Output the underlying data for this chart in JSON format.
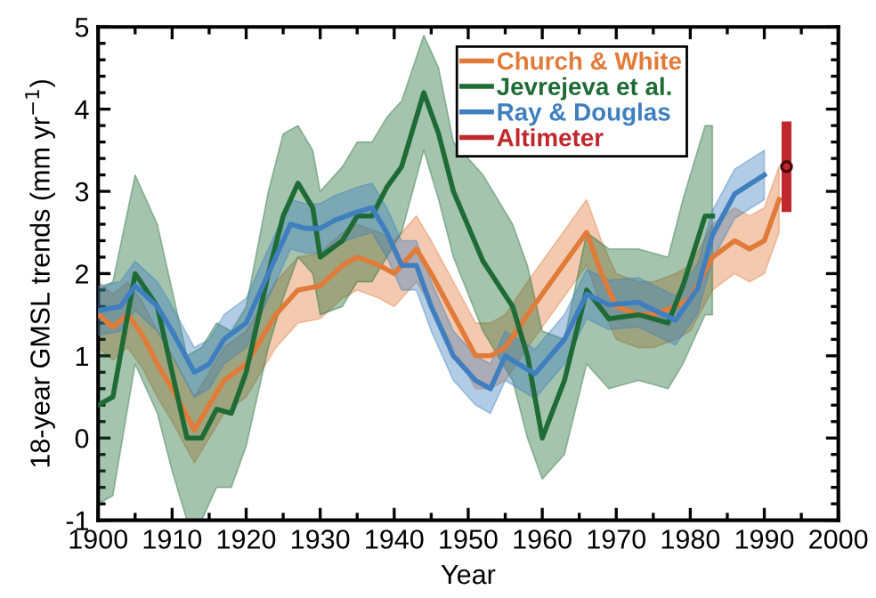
{
  "chart_data": {
    "type": "line",
    "xlabel": "Year",
    "ylabel": "18-year GMSL trends (mm yr$^{−1}$)",
    "xlim": [
      1900,
      2000
    ],
    "xticks": [
      1900,
      1910,
      1920,
      1930,
      1940,
      1950,
      1960,
      1970,
      1980,
      1990,
      2000
    ],
    "ylim": [
      -1,
      5
    ],
    "yticks": [
      -1,
      0,
      1,
      2,
      3,
      4,
      5
    ],
    "grid": false,
    "legend": "top",
    "series": [
      {
        "name": "Church & White",
        "color": "#e07b39",
        "x": [
          1900,
          1902,
          1904,
          1906,
          1908,
          1910,
          1913,
          1915,
          1917,
          1920,
          1922,
          1924,
          1927,
          1930,
          1933,
          1935,
          1938,
          1940,
          1943,
          1945,
          1948,
          1951,
          1953,
          1955,
          1958,
          1962,
          1966,
          1968,
          1970,
          1973,
          1975,
          1978,
          1980,
          1983,
          1986,
          1988,
          1990,
          1992
        ],
        "values": [
          1.5,
          1.35,
          1.5,
          1.25,
          0.9,
          0.6,
          0.1,
          0.4,
          0.7,
          0.9,
          1.2,
          1.5,
          1.8,
          1.85,
          2.1,
          2.2,
          2.1,
          2.0,
          2.3,
          2.0,
          1.5,
          1.0,
          1.0,
          1.1,
          1.5,
          2.0,
          2.5,
          2.0,
          1.6,
          1.5,
          1.5,
          1.6,
          1.7,
          2.2,
          2.4,
          2.3,
          2.4,
          2.9
        ],
        "lower": [
          1.1,
          0.95,
          1.1,
          0.85,
          0.5,
          0.2,
          -0.3,
          0.0,
          0.3,
          0.5,
          0.8,
          1.1,
          1.4,
          1.45,
          1.7,
          1.8,
          1.7,
          1.6,
          1.9,
          1.6,
          1.1,
          0.6,
          0.6,
          0.7,
          1.1,
          1.6,
          2.1,
          1.6,
          1.2,
          1.1,
          1.1,
          1.2,
          1.3,
          1.8,
          2.0,
          1.9,
          2.0,
          2.5
        ],
        "upper": [
          1.9,
          1.75,
          1.9,
          1.65,
          1.3,
          1.0,
          0.5,
          0.8,
          1.1,
          1.3,
          1.6,
          1.9,
          2.2,
          2.25,
          2.5,
          2.6,
          2.5,
          2.4,
          2.7,
          2.4,
          1.9,
          1.4,
          1.4,
          1.5,
          1.9,
          2.4,
          2.9,
          2.4,
          2.0,
          1.9,
          1.9,
          2.0,
          2.1,
          2.6,
          2.8,
          2.7,
          2.8,
          3.3
        ]
      },
      {
        "name": "Jevrejeva et al.",
        "color": "#1e6b35",
        "x": [
          1900,
          1902,
          1905,
          1908,
          1910,
          1912,
          1914,
          1916,
          1918,
          1920,
          1923,
          1925,
          1927,
          1929,
          1930,
          1933,
          1935,
          1937,
          1939,
          1941,
          1944,
          1946,
          1948,
          1952,
          1956,
          1958,
          1960,
          1963,
          1966,
          1969,
          1973,
          1977,
          1979,
          1982,
          1983
        ],
        "values": [
          0.4,
          0.5,
          2.0,
          1.6,
          0.8,
          0.0,
          0.0,
          0.35,
          0.3,
          0.8,
          2.0,
          2.7,
          3.1,
          2.8,
          2.2,
          2.4,
          2.7,
          2.7,
          3.05,
          3.3,
          4.2,
          3.7,
          3.0,
          2.15,
          1.6,
          1.0,
          0.0,
          0.7,
          1.8,
          1.45,
          1.5,
          1.4,
          1.85,
          2.7,
          2.7
        ],
        "lower": [
          -0.8,
          -0.7,
          0.9,
          0.3,
          -0.4,
          -1.0,
          -1.0,
          -0.6,
          -0.6,
          -0.1,
          1.1,
          1.7,
          2.2,
          2.0,
          1.5,
          1.6,
          1.9,
          1.9,
          2.2,
          2.5,
          3.5,
          2.9,
          2.2,
          1.3,
          0.7,
          0.0,
          -0.5,
          -0.2,
          0.9,
          0.6,
          0.7,
          0.6,
          0.9,
          1.5,
          1.5
        ],
        "upper": [
          1.8,
          1.9,
          3.2,
          2.6,
          1.8,
          1.0,
          1.1,
          1.4,
          1.3,
          1.6,
          3.0,
          3.7,
          3.8,
          3.5,
          3.0,
          3.3,
          3.6,
          3.6,
          3.9,
          4.1,
          4.9,
          4.5,
          3.6,
          3.2,
          2.6,
          2.1,
          1.3,
          1.2,
          2.5,
          2.3,
          2.3,
          2.2,
          2.9,
          3.8,
          3.8
        ]
      },
      {
        "name": "Ray & Douglas",
        "color": "#3f7fbf",
        "x": [
          1900,
          1903,
          1905,
          1908,
          1910,
          1913,
          1915,
          1917,
          1920,
          1923,
          1926,
          1928,
          1930,
          1932,
          1935,
          1937,
          1939,
          1941,
          1943,
          1945,
          1948,
          1951,
          1953,
          1955,
          1959,
          1963,
          1966,
          1969,
          1973,
          1978,
          1981,
          1983,
          1986,
          1990
        ],
        "values": [
          1.55,
          1.6,
          1.85,
          1.6,
          1.3,
          0.8,
          0.9,
          1.2,
          1.4,
          2.0,
          2.6,
          2.55,
          2.55,
          2.65,
          2.75,
          2.8,
          2.5,
          2.1,
          2.1,
          1.6,
          1.0,
          0.7,
          0.6,
          1.0,
          0.78,
          1.2,
          1.75,
          1.62,
          1.65,
          1.43,
          1.82,
          2.47,
          2.97,
          3.2
        ],
        "lower": [
          1.25,
          1.3,
          1.55,
          1.3,
          1.0,
          0.5,
          0.6,
          0.9,
          1.1,
          1.7,
          2.3,
          2.25,
          2.25,
          2.35,
          2.45,
          2.5,
          2.2,
          1.8,
          1.8,
          1.3,
          0.7,
          0.4,
          0.3,
          0.7,
          0.48,
          0.9,
          1.45,
          1.32,
          1.35,
          1.13,
          1.52,
          2.17,
          2.67,
          2.9
        ],
        "upper": [
          1.85,
          1.9,
          2.15,
          1.9,
          1.6,
          1.1,
          1.2,
          1.5,
          1.7,
          2.3,
          2.9,
          2.85,
          2.85,
          2.95,
          3.05,
          3.1,
          2.8,
          2.4,
          2.4,
          1.9,
          1.3,
          1.0,
          0.9,
          1.3,
          1.08,
          1.5,
          2.05,
          1.92,
          1.95,
          1.73,
          2.12,
          2.77,
          3.27,
          3.5
        ]
      },
      {
        "name": "Altimeter",
        "type": "scatter",
        "color": "#c0282d",
        "x": [
          1993
        ],
        "values": [
          3.3
        ],
        "errors": [
          0.55
        ]
      }
    ]
  }
}
